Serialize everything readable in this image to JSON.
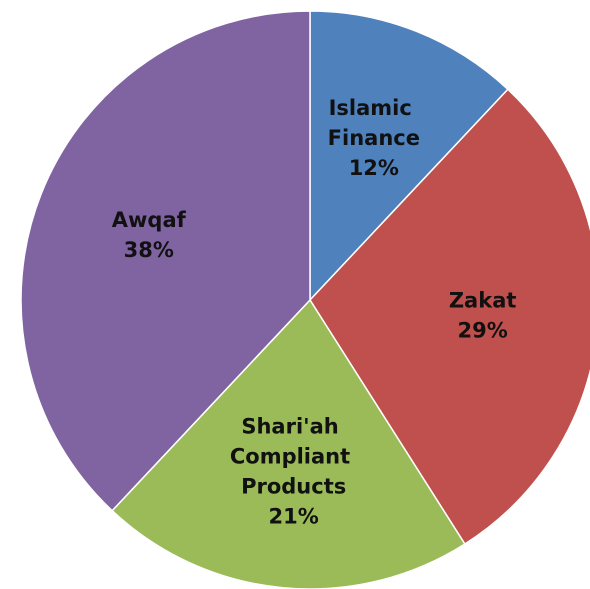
{
  "chart_data": {
    "type": "pie",
    "categories": [
      "Islamic Finance",
      "Zakat",
      "Shari'ah Compliant Products",
      "Awqaf"
    ],
    "values": [
      12,
      29,
      21,
      38
    ],
    "value_labels": [
      "12%",
      "29%",
      "21%",
      "38%"
    ],
    "colors": [
      "#4f81bd",
      "#c0504d",
      "#9bbb59",
      "#8064a2"
    ]
  }
}
